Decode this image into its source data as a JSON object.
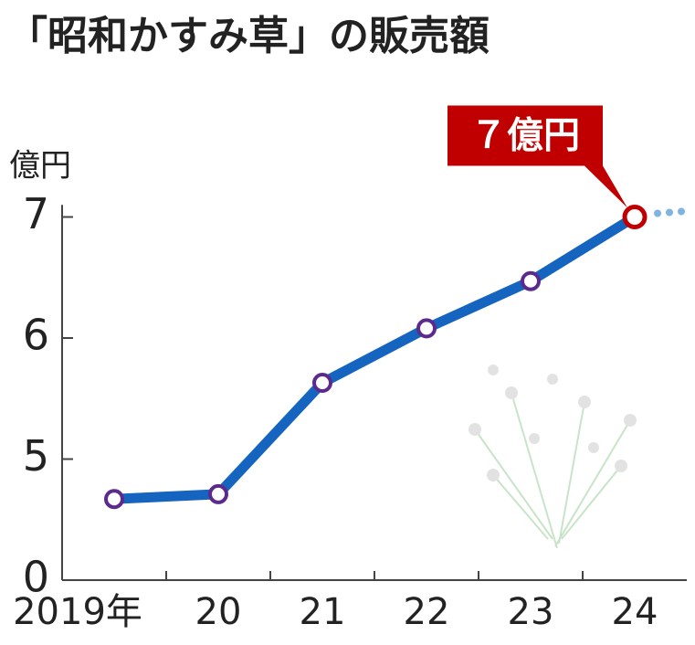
{
  "chart_data": {
    "type": "line",
    "title": "「昭和かすみ草」の販売額",
    "y_unit": "億円",
    "categories": [
      "2019年",
      "20",
      "21",
      "22",
      "23",
      "24"
    ],
    "series": [
      {
        "values": [
          4.67,
          4.71,
          5.63,
          6.08,
          6.47,
          7
        ],
        "color": "#1565c0"
      }
    ],
    "ylim": [
      0,
      7.1
    ],
    "yticks": [
      0,
      5,
      6,
      7
    ],
    "axis_break": true,
    "annotation": "７億円",
    "annotation_color": "#c00000",
    "marker_color": "#5b2a8c"
  }
}
